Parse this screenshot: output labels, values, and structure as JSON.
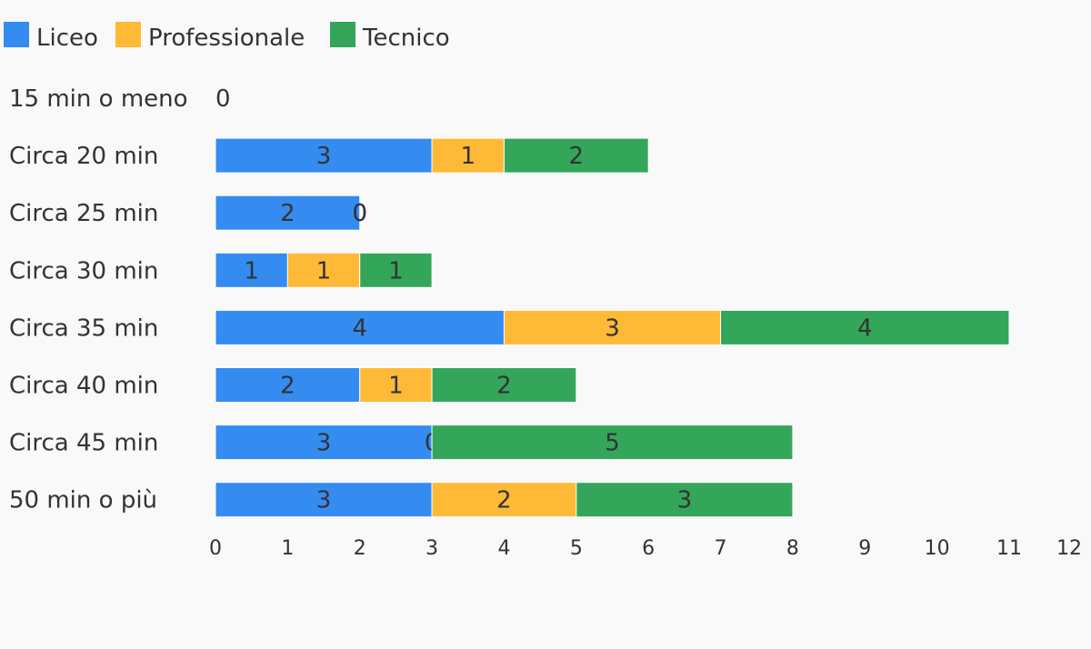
{
  "chart_data": {
    "type": "bar",
    "orientation": "horizontal",
    "stacked": true,
    "title": "",
    "xlabel": "",
    "ylabel": "",
    "categories": [
      "15 min o meno",
      "Circa 20 min",
      "Circa 25 min",
      "Circa 30 min",
      "Circa 35 min",
      "Circa 40 min",
      "Circa 45 min",
      "50 min o più"
    ],
    "series": [
      {
        "name": "Liceo",
        "color": "#348cf0",
        "values": [
          0,
          3,
          2,
          1,
          4,
          2,
          3,
          3
        ]
      },
      {
        "name": "Professionale",
        "color": "#feb937",
        "values": [
          0,
          1,
          0,
          1,
          3,
          1,
          0,
          2
        ]
      },
      {
        "name": "Tecnico",
        "color": "#33a65a",
        "values": [
          0,
          2,
          0,
          1,
          4,
          2,
          5,
          3
        ]
      }
    ],
    "xlim": [
      0,
      12
    ],
    "xticks": [
      "0",
      "1",
      "2",
      "3",
      "4",
      "5",
      "6",
      "7",
      "8",
      "9",
      "10",
      "11",
      "12"
    ],
    "legend_position": "top-left",
    "grid": false,
    "background": "#f9f9f9"
  }
}
